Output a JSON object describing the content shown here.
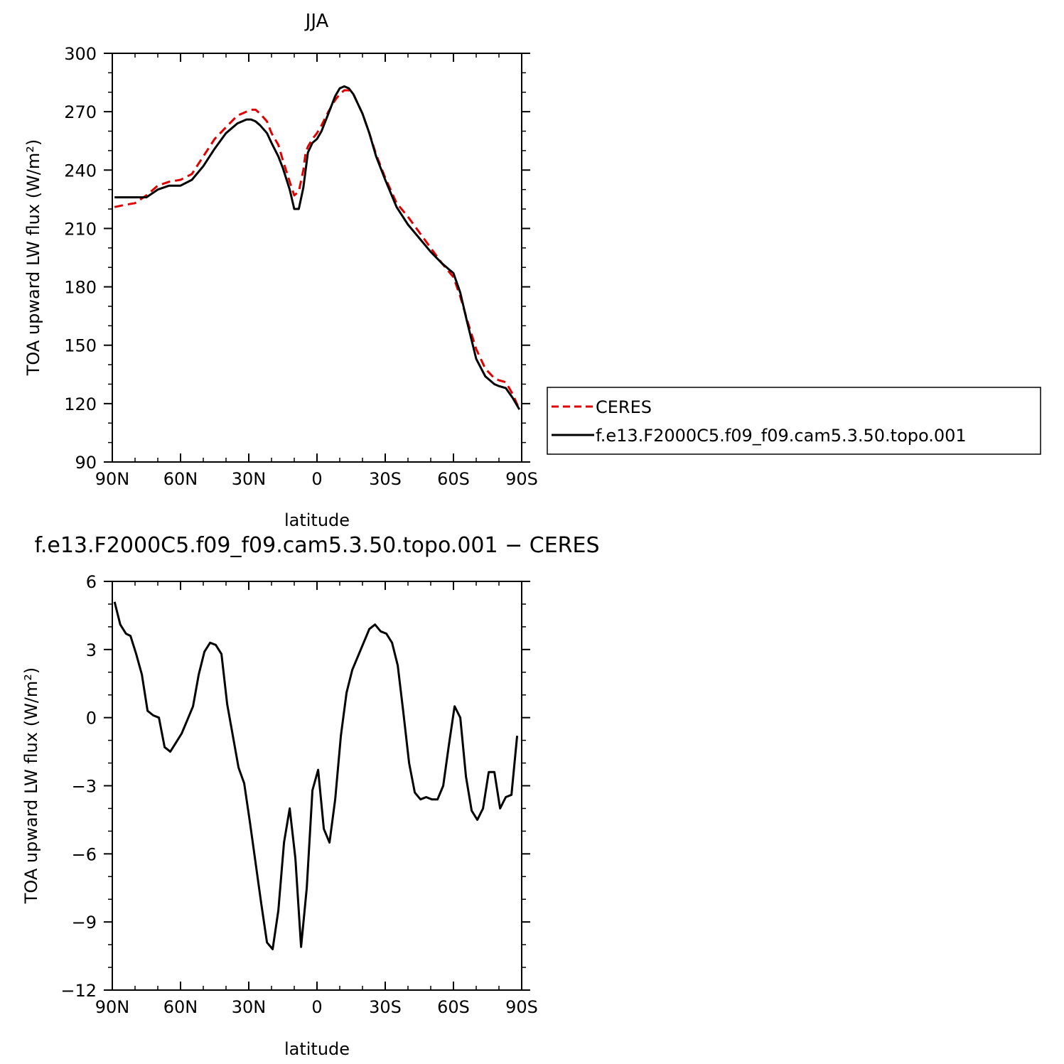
{
  "chart_data": [
    {
      "type": "line",
      "title": "JJA",
      "xlabel": "latitude",
      "ylabel": "TOA upward LW flux (W/m²)",
      "xlim": [
        90,
        -90
      ],
      "ylim": [
        90,
        300
      ],
      "x_ticks": [
        90,
        60,
        30,
        0,
        -30,
        -60,
        -90
      ],
      "x_tick_labels": [
        "90N",
        "60N",
        "30N",
        "0",
        "30S",
        "60S",
        "90S"
      ],
      "y_ticks": [
        90,
        120,
        150,
        180,
        210,
        240,
        270,
        300
      ],
      "y_tick_labels": [
        "90",
        "120",
        "150",
        "180",
        "210",
        "240",
        "270",
        "300"
      ],
      "grid": false,
      "legend": "right",
      "series": [
        {
          "name": "CERES",
          "color": "#e00000",
          "dash": "dashed",
          "x": [
            89,
            85,
            80,
            75,
            70,
            65,
            60,
            55,
            50,
            45,
            40,
            35,
            31,
            29,
            27,
            25,
            22,
            20,
            17,
            15,
            12,
            10,
            8,
            6,
            5,
            4,
            2,
            0,
            -2,
            -5,
            -8,
            -10,
            -12,
            -14,
            -16,
            -18,
            -20,
            -23,
            -26,
            -30,
            -35,
            -40,
            -45,
            -50,
            -55,
            -60,
            -63,
            -66,
            -70,
            -74,
            -78,
            -80,
            -83,
            -86,
            -89
          ],
          "y": [
            221,
            222,
            223,
            227,
            232,
            234,
            235,
            238,
            247,
            256,
            262,
            268,
            270,
            271,
            271,
            269,
            265,
            259,
            253,
            245,
            234,
            227,
            229,
            240,
            249,
            252,
            256,
            259,
            263,
            270,
            276,
            279,
            281,
            281,
            279,
            274,
            269,
            259,
            248,
            236,
            223,
            216,
            208,
            200,
            192,
            185,
            175,
            163,
            148,
            138,
            133,
            132,
            131,
            125,
            117
          ]
        },
        {
          "name": "f.e13.F2000C5.f09_f09.cam5.3.50.topo.001",
          "color": "#000000",
          "dash": "solid",
          "x": [
            89,
            85,
            80,
            75,
            70,
            65,
            60,
            55,
            50,
            45,
            40,
            35,
            31,
            29,
            27,
            25,
            22,
            20,
            17,
            15,
            12,
            10,
            8,
            6,
            5,
            4,
            2,
            0,
            -2,
            -5,
            -8,
            -10,
            -12,
            -14,
            -16,
            -18,
            -20,
            -23,
            -26,
            -30,
            -35,
            -40,
            -45,
            -50,
            -55,
            -60,
            -63,
            -66,
            -70,
            -74,
            -78,
            -80,
            -83,
            -86,
            -89
          ],
          "y": [
            226,
            226,
            226,
            226,
            230,
            232,
            232,
            235,
            242,
            251,
            259,
            264,
            266,
            266,
            265,
            263,
            259,
            254,
            247,
            241,
            230,
            220,
            220,
            231,
            240,
            249,
            254,
            256,
            260,
            269,
            278,
            282,
            283,
            282,
            279,
            274,
            269,
            259,
            247,
            235,
            221,
            212,
            205,
            198,
            192,
            187,
            177,
            162,
            143,
            134,
            130,
            129,
            128,
            123,
            117
          ]
        }
      ]
    },
    {
      "type": "line",
      "title": "f.e13.F2000C5.f09_f09.cam5.3.50.topo.001 − CERES",
      "xlabel": "latitude",
      "ylabel": "TOA upward LW flux (W/m²)",
      "xlim": [
        90,
        -90
      ],
      "ylim": [
        -12,
        6
      ],
      "x_ticks": [
        90,
        60,
        30,
        0,
        -30,
        -60,
        -90
      ],
      "x_tick_labels": [
        "90N",
        "60N",
        "30N",
        "0",
        "30S",
        "60S",
        "90S"
      ],
      "y_ticks": [
        6,
        3,
        0,
        -3,
        -6,
        -9,
        -12
      ],
      "y_tick_labels": [
        "6",
        "3",
        "0",
        "−3",
        "−6",
        "−9",
        "−12"
      ],
      "grid": false,
      "series": [
        {
          "color": "#000000",
          "dash": "solid",
          "x": [
            89,
            86.5,
            84,
            82,
            79.5,
            77,
            74.5,
            72,
            69.5,
            67,
            64.5,
            62,
            59.5,
            57,
            54.5,
            52,
            49.5,
            47,
            44.5,
            42,
            39.5,
            37,
            34.5,
            32,
            29.5,
            27,
            24.5,
            22,
            19.5,
            17,
            14.5,
            12,
            9.5,
            7,
            4.5,
            2,
            -0.5,
            -3,
            -5.5,
            -8,
            -10.5,
            -13,
            -15.5,
            -18,
            -20.5,
            -23,
            -25.5,
            -28,
            -30.5,
            -33,
            -35.5,
            -38,
            -40.5,
            -43,
            -45.5,
            -48,
            -50.5,
            -53,
            -55.5,
            -58,
            -60.5,
            -63,
            -65.5,
            -68,
            -70.5,
            -73,
            -75.5,
            -78,
            -80.5,
            -83,
            -85.5,
            -88
          ],
          "y": [
            5.1,
            4.1,
            3.7,
            3.6,
            2.8,
            1.9,
            0.3,
            0.1,
            0.0,
            -1.3,
            -1.5,
            -1.1,
            -0.7,
            -0.1,
            0.5,
            1.9,
            2.9,
            3.3,
            3.2,
            2.8,
            0.6,
            -0.8,
            -2.2,
            -2.9,
            -4.6,
            -6.4,
            -8.2,
            -9.9,
            -10.2,
            -8.5,
            -5.5,
            -4.0,
            -6.2,
            -10.1,
            -7.5,
            -3.2,
            -2.3,
            -4.9,
            -5.5,
            -3.6,
            -0.8,
            1.1,
            2.1,
            2.7,
            3.3,
            3.9,
            4.1,
            3.8,
            3.7,
            3.3,
            2.3,
            0.2,
            -2.0,
            -3.3,
            -3.6,
            -3.5,
            -3.6,
            -3.6,
            -3.0,
            -1.2,
            0.5,
            0.0,
            -2.6,
            -4.1,
            -4.5,
            -4.0,
            -2.4,
            -2.4,
            -4.0,
            -3.5,
            -3.4,
            -0.8
          ]
        }
      ]
    }
  ]
}
